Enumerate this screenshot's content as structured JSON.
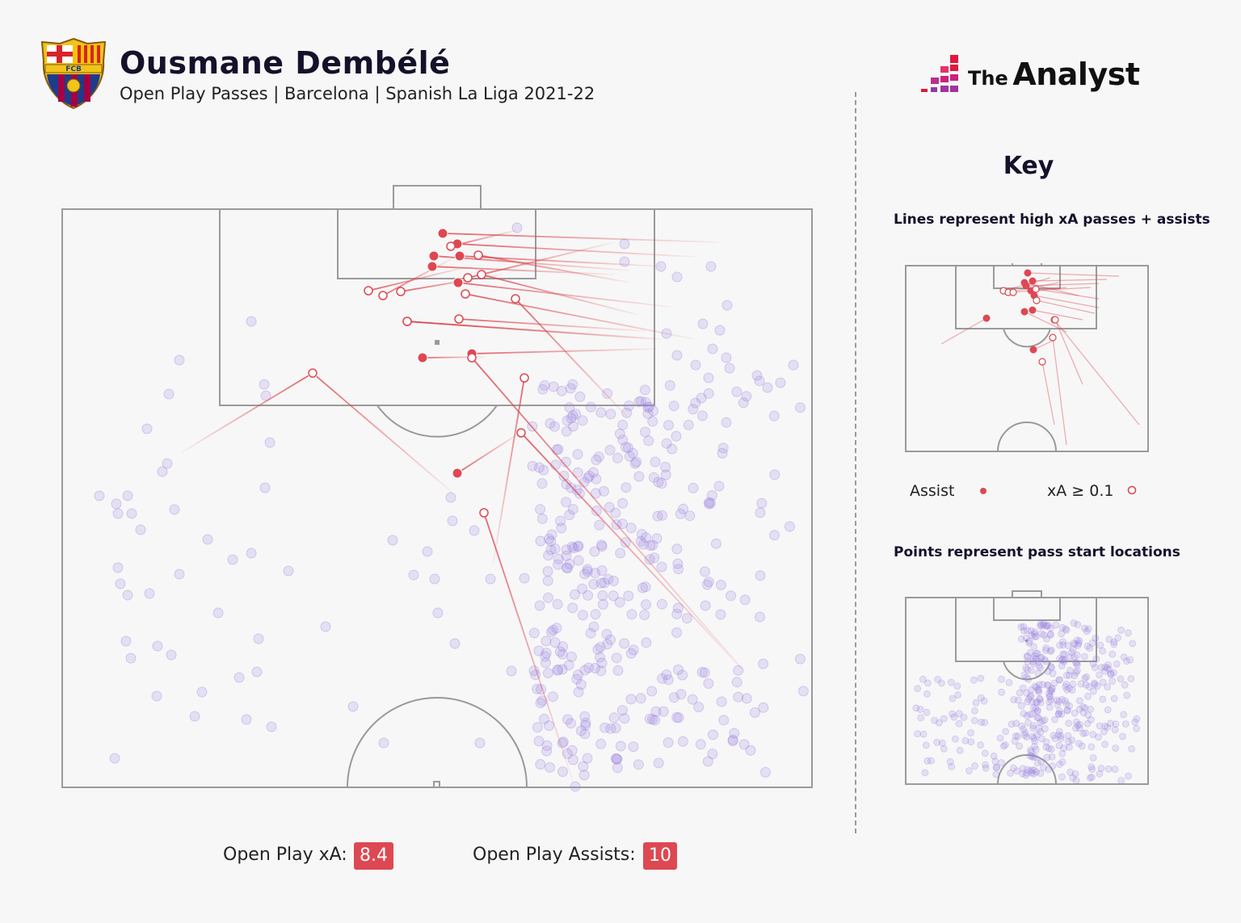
{
  "header": {
    "player_name": "Ousmane Dembélé",
    "subtitle": "Open Play Passes | Barcelona | Spanish La Liga 2021-22",
    "crest_text": "FCB"
  },
  "brand": {
    "the": "The",
    "analyst": "Analyst"
  },
  "key": {
    "title": "Key",
    "lines_caption": "Lines represent high xA passes + assists",
    "assist_label": "Assist",
    "xa_label": "xA ≥ 0.1",
    "points_caption": "Points represent pass start locations"
  },
  "stats": {
    "xa_label": "Open Play xA:",
    "xa_value": "8.4",
    "assists_label": "Open Play Assists:",
    "assists_value": "10"
  },
  "colors": {
    "assist": "#de4852",
    "pass_point": "#9b82e0",
    "pitch_line": "#9a9a9a",
    "badge": "#de4852",
    "background": "#f7f7f7"
  },
  "icons": {
    "crest": "fc-barcelona-crest-icon",
    "logo": "the-analyst-logo-icon"
  }
}
